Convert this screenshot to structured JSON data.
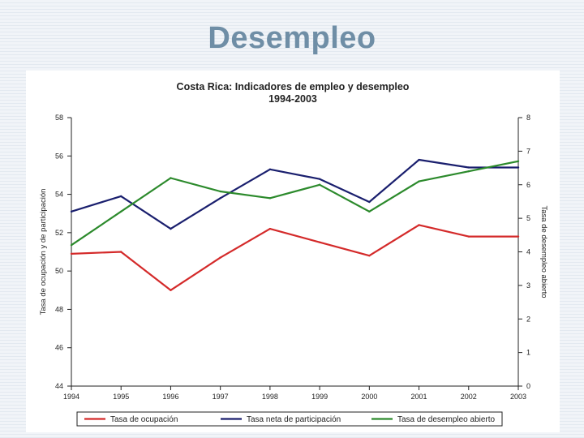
{
  "slide": {
    "title": "Desempleo"
  },
  "chart_data": {
    "type": "line",
    "title": "Costa Rica: Indicadores de empleo y desempleo",
    "subtitle": "1994-2003",
    "x": [
      "1994",
      "1995",
      "1996",
      "1997",
      "1998",
      "1999",
      "2000",
      "2001",
      "2002",
      "2003"
    ],
    "ylabel_left": "Tasa de ocupación y de participación",
    "ylabel_right": "Tasa de desempleo abierto",
    "ylim_left": [
      44,
      58
    ],
    "yticks_left": [
      44,
      46,
      48,
      50,
      52,
      54,
      56,
      58
    ],
    "ylim_right": [
      0,
      8
    ],
    "yticks_right": [
      0,
      1,
      2,
      3,
      4,
      5,
      6,
      7,
      8
    ],
    "grid": false,
    "legend_position": "bottom",
    "series": [
      {
        "name": "Tasa de ocupación",
        "axis": "left",
        "color": "#d42a2a",
        "values": [
          50.9,
          51.0,
          49.0,
          50.7,
          52.2,
          51.5,
          50.8,
          52.4,
          51.8,
          51.8
        ]
      },
      {
        "name": "Tasa neta de participación",
        "axis": "left",
        "color": "#1a1f6e",
        "values": [
          53.1,
          53.9,
          52.2,
          53.8,
          55.3,
          54.8,
          53.6,
          55.8,
          55.4,
          55.4
        ]
      },
      {
        "name": "Tasa de desempleo abierto",
        "axis": "right",
        "color": "#2c8a2c",
        "values": [
          4.2,
          5.2,
          6.2,
          5.8,
          5.6,
          6.0,
          5.2,
          6.1,
          6.4,
          6.7
        ]
      }
    ]
  }
}
